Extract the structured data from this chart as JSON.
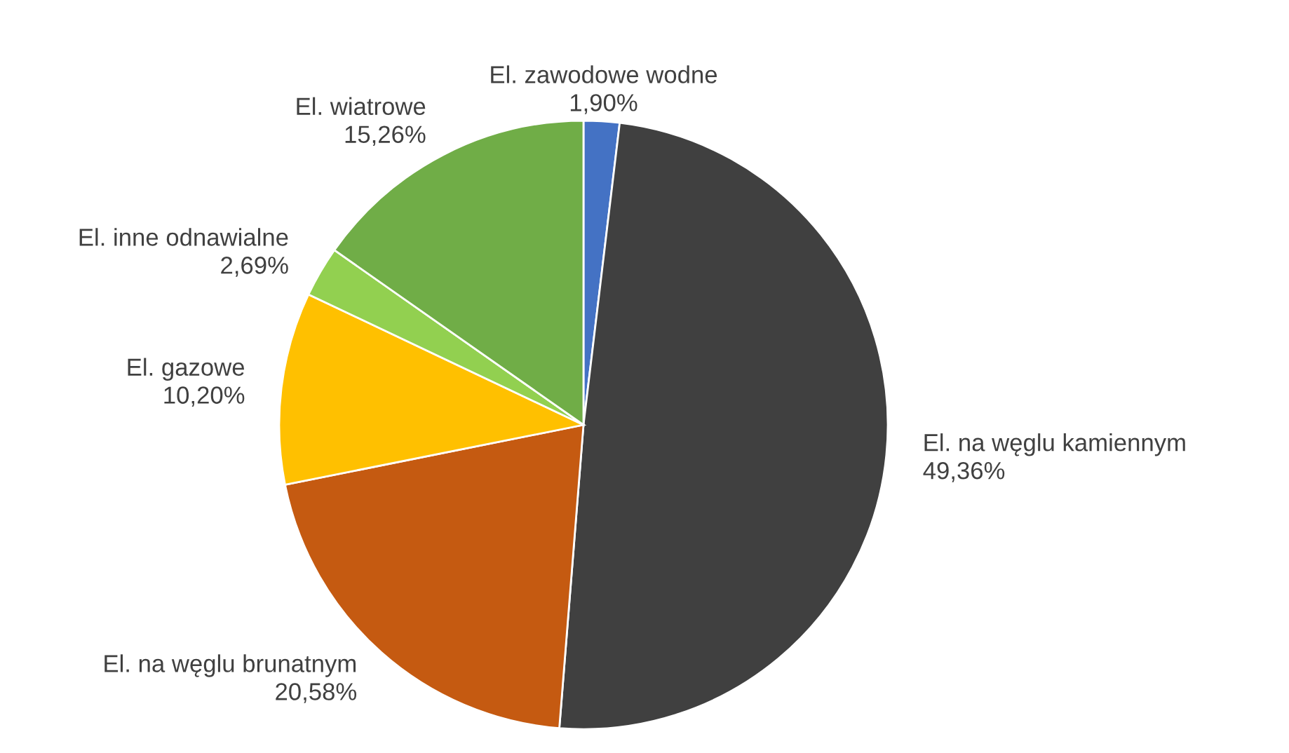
{
  "chart_data": {
    "type": "pie",
    "categories": [
      "El. zawodowe wodne",
      "El. na węglu kamiennym",
      "El. na węglu brunatnym",
      "El. gazowe",
      "El. inne odnawialne",
      "El. wiatrowe"
    ],
    "values": [
      1.9,
      49.36,
      20.58,
      10.2,
      2.69,
      15.26
    ],
    "colors": [
      "#4472c4",
      "#404040",
      "#c55a11",
      "#ffc000",
      "#92d050",
      "#70ad47"
    ],
    "value_labels": [
      "1,90%",
      "49,36%",
      "20,58%",
      "10,20%",
      "2,69%",
      "15,26%"
    ]
  }
}
